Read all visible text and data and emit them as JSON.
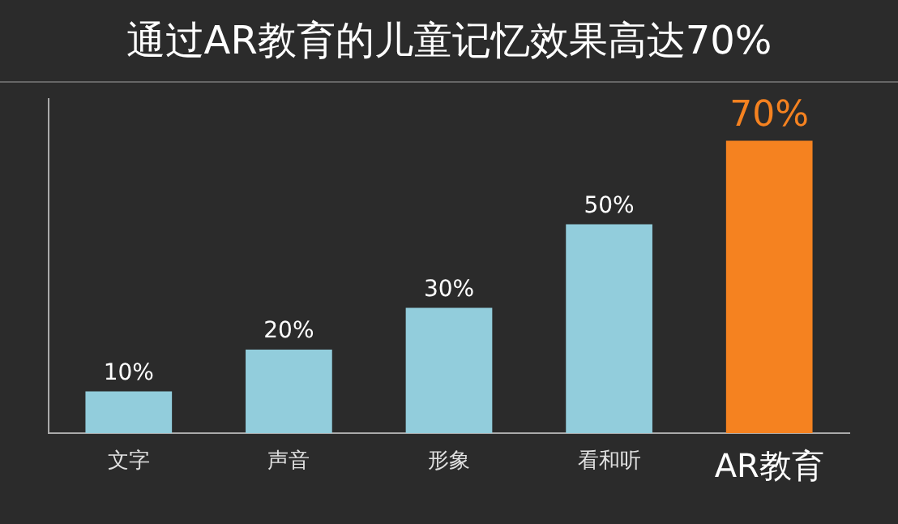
{
  "chart_data": {
    "type": "bar",
    "title": "通过AR教育的儿童记忆效果高达70%",
    "categories": [
      "文字",
      "声音",
      "形象",
      "看和听",
      "AR教育"
    ],
    "values": [
      10,
      20,
      30,
      50,
      70
    ],
    "colors": [
      "#92cddc",
      "#92cddc",
      "#92cddc",
      "#92cddc",
      "#f58220"
    ],
    "value_labels": [
      "10%",
      "20%",
      "30%",
      "50%",
      "70%"
    ],
    "tick_labels": "x",
    "grid": false,
    "legend": false
  }
}
